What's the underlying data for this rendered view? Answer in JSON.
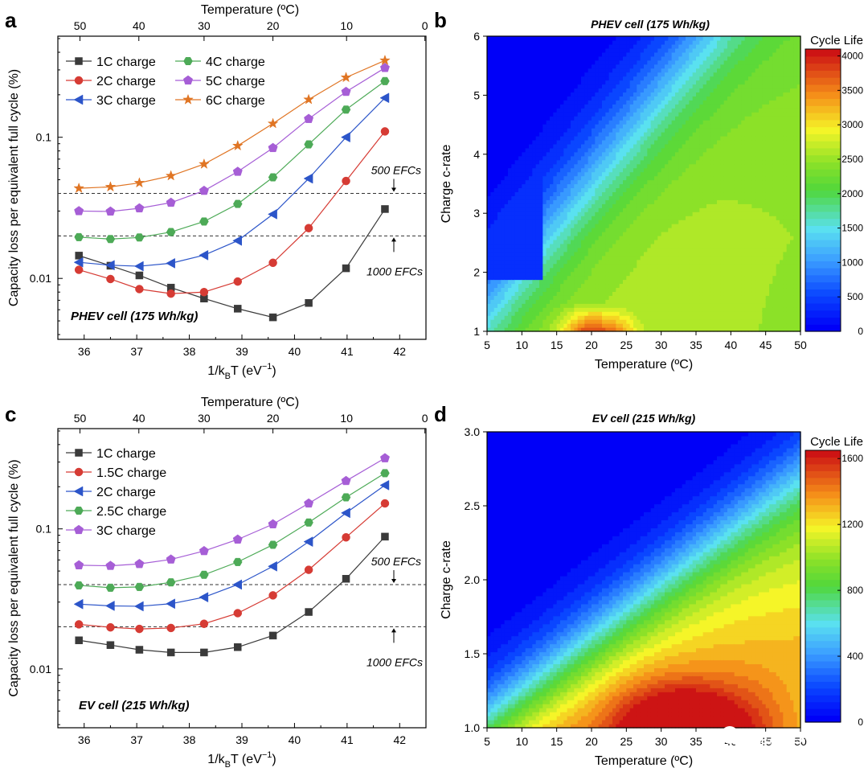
{
  "figure": {
    "watermark": "能源学人"
  },
  "chart_data": [
    {
      "id": "a",
      "panel_letter": "a",
      "type": "line",
      "xlabel": "1/kBT (eV−1)",
      "xlabel_parts": {
        "main": "1/k",
        "sub": "B",
        "mid": "T (eV",
        "sup": "−1",
        "end": ")"
      },
      "ylabel": "Capacity loss per equivalent full cycle (%)",
      "yscale": "log",
      "xlim": [
        35.5,
        42.5
      ],
      "ylim": [
        0.0037,
        0.52
      ],
      "x_ticks": [
        36,
        37,
        38,
        39,
        40,
        41,
        42
      ],
      "y_ticks": [
        {
          "value": 0.01,
          "label": "0.01"
        },
        {
          "value": 0.1,
          "label": "0.1"
        }
      ],
      "top_axis": {
        "label": "Temperature (ºC)",
        "ticks": [
          {
            "label": "50",
            "x": 35.92
          },
          {
            "label": "40",
            "x": 37.04
          },
          {
            "label": "30",
            "x": 38.28
          },
          {
            "label": "20",
            "x": 39.59
          },
          {
            "label": "10",
            "x": 40.99
          },
          {
            "label": "0",
            "x": 42.48
          }
        ]
      },
      "cell_label": "PHEV cell (175 Wh/kg)",
      "threshold_lines": [
        {
          "y": 0.04,
          "label": "500 EFCs",
          "label_pos": "above"
        },
        {
          "y": 0.02,
          "label": "1000 EFCs",
          "label_pos": "below"
        }
      ],
      "legend": {
        "position": "top-left",
        "columns": 2
      },
      "x": [
        35.9,
        36.5,
        37.05,
        37.65,
        38.28,
        38.92,
        39.59,
        40.27,
        40.98,
        41.72
      ],
      "series": [
        {
          "name": "1C charge",
          "color": "#3a3a3a",
          "marker": "square",
          "values": [
            0.0145,
            0.0123,
            0.0105,
            0.0086,
            0.0072,
            0.0061,
            0.0053,
            0.0067,
            0.0118,
            0.031
          ]
        },
        {
          "name": "2C charge",
          "color": "#d63b34",
          "marker": "circle",
          "values": [
            0.0115,
            0.0099,
            0.0084,
            0.0078,
            0.008,
            0.0095,
            0.0129,
            0.0227,
            0.049,
            0.11
          ]
        },
        {
          "name": "3C charge",
          "color": "#2c55c9",
          "marker": "triangle-left",
          "values": [
            0.013,
            0.0124,
            0.0122,
            0.0128,
            0.0146,
            0.0185,
            0.0285,
            0.051,
            0.1,
            0.19
          ]
        },
        {
          "name": "4C charge",
          "color": "#4daa57",
          "marker": "hexagon",
          "values": [
            0.0196,
            0.019,
            0.0195,
            0.0213,
            0.0253,
            0.0337,
            0.052,
            0.089,
            0.157,
            0.25
          ]
        },
        {
          "name": "5C charge",
          "color": "#a65ed6",
          "marker": "pentagon",
          "values": [
            0.03,
            0.0298,
            0.0314,
            0.0344,
            0.0418,
            0.057,
            0.084,
            0.135,
            0.21,
            0.31
          ]
        },
        {
          "name": "6C charge",
          "color": "#e07524",
          "marker": "star",
          "values": [
            0.0435,
            0.0445,
            0.0475,
            0.0533,
            0.0645,
            0.087,
            0.125,
            0.185,
            0.265,
            0.35
          ]
        }
      ]
    },
    {
      "id": "b",
      "panel_letter": "b",
      "type": "heatmap",
      "title": "PHEV cell (175 Wh/kg)",
      "xlabel": "Temperature (ºC)",
      "ylabel": "Charge c-rate",
      "xlim": [
        5,
        50
      ],
      "ylim": [
        1,
        6
      ],
      "x_ticks": [
        5,
        10,
        15,
        20,
        25,
        30,
        35,
        40,
        45,
        50
      ],
      "y_ticks": [
        {
          "value": 1,
          "label": "1"
        },
        {
          "value": 2,
          "label": "2"
        },
        {
          "value": 3,
          "label": "3"
        },
        {
          "value": 4,
          "label": "4"
        },
        {
          "value": 5,
          "label": "5"
        },
        {
          "value": 6,
          "label": "6"
        }
      ],
      "colorbar": {
        "label": "Cycle Life",
        "min": 0,
        "max": 4100,
        "ticks": [
          0,
          500,
          1000,
          1500,
          2000,
          2500,
          3000,
          3500,
          4000
        ]
      },
      "model": "phev"
    },
    {
      "id": "c",
      "panel_letter": "c",
      "type": "line",
      "xlabel": "1/kBT (eV−1)",
      "xlabel_parts": {
        "main": "1/k",
        "sub": "B",
        "mid": "T (eV",
        "sup": "−1",
        "end": ")"
      },
      "ylabel": "Capacity loss per equivalent full cycle (%)",
      "yscale": "log",
      "xlim": [
        35.5,
        42.5
      ],
      "ylim": [
        0.0038,
        0.52
      ],
      "x_ticks": [
        36,
        37,
        38,
        39,
        40,
        41,
        42
      ],
      "y_ticks": [
        {
          "value": 0.01,
          "label": "0.01"
        },
        {
          "value": 0.1,
          "label": "0.1"
        }
      ],
      "top_axis": {
        "label": "Temperature (ºC)",
        "ticks": [
          {
            "label": "50",
            "x": 35.92
          },
          {
            "label": "40",
            "x": 37.04
          },
          {
            "label": "30",
            "x": 38.28
          },
          {
            "label": "20",
            "x": 39.59
          },
          {
            "label": "10",
            "x": 40.99
          },
          {
            "label": "0",
            "x": 42.48
          }
        ]
      },
      "cell_label": "EV cell (215 Wh/kg)",
      "threshold_lines": [
        {
          "y": 0.04,
          "label": "500 EFCs",
          "label_pos": "above"
        },
        {
          "y": 0.02,
          "label": "1000 EFCs",
          "label_pos": "below"
        }
      ],
      "legend": {
        "position": "top-left",
        "columns": 1
      },
      "x": [
        35.9,
        36.5,
        37.05,
        37.65,
        38.28,
        38.92,
        39.59,
        40.27,
        40.98,
        41.72
      ],
      "series": [
        {
          "name": "1C charge",
          "color": "#3a3a3a",
          "marker": "square",
          "values": [
            0.016,
            0.0148,
            0.0137,
            0.0131,
            0.0131,
            0.0143,
            0.0173,
            0.0255,
            0.044,
            0.088
          ]
        },
        {
          "name": "1.5C charge",
          "color": "#d63b34",
          "marker": "circle",
          "values": [
            0.0208,
            0.0198,
            0.0193,
            0.0196,
            0.021,
            0.025,
            0.0335,
            0.051,
            0.087,
            0.152
          ]
        },
        {
          "name": "2C charge",
          "color": "#2c55c9",
          "marker": "triangle-left",
          "values": [
            0.029,
            0.0282,
            0.028,
            0.0292,
            0.0325,
            0.04,
            0.054,
            0.081,
            0.13,
            0.205
          ]
        },
        {
          "name": "2.5C charge",
          "color": "#4daa57",
          "marker": "hexagon",
          "values": [
            0.0395,
            0.038,
            0.0385,
            0.0415,
            0.047,
            0.058,
            0.077,
            0.111,
            0.168,
            0.25
          ]
        },
        {
          "name": "3C charge",
          "color": "#a65ed6",
          "marker": "pentagon",
          "values": [
            0.055,
            0.0545,
            0.0562,
            0.0605,
            0.0695,
            0.084,
            0.108,
            0.152,
            0.22,
            0.32
          ]
        }
      ]
    },
    {
      "id": "d",
      "panel_letter": "d",
      "type": "heatmap",
      "title": "EV cell (215 Wh/kg)",
      "xlabel": "Temperature (ºC)",
      "ylabel": "Charge c-rate",
      "xlim": [
        5,
        50
      ],
      "ylim": [
        1,
        3
      ],
      "x_ticks": [
        5,
        10,
        15,
        20,
        25,
        30,
        35,
        40,
        45,
        50
      ],
      "y_ticks": [
        {
          "value": 1,
          "label": "1.0"
        },
        {
          "value": 1.5,
          "label": "1.5"
        },
        {
          "value": 2,
          "label": "2.0"
        },
        {
          "value": 2.5,
          "label": "2.5"
        },
        {
          "value": 3,
          "label": "3.0"
        }
      ],
      "colorbar": {
        "label": "Cycle Life",
        "min": 0,
        "max": 1650,
        "ticks": [
          0,
          400,
          800,
          1200,
          1600
        ]
      },
      "model": "ev"
    }
  ]
}
